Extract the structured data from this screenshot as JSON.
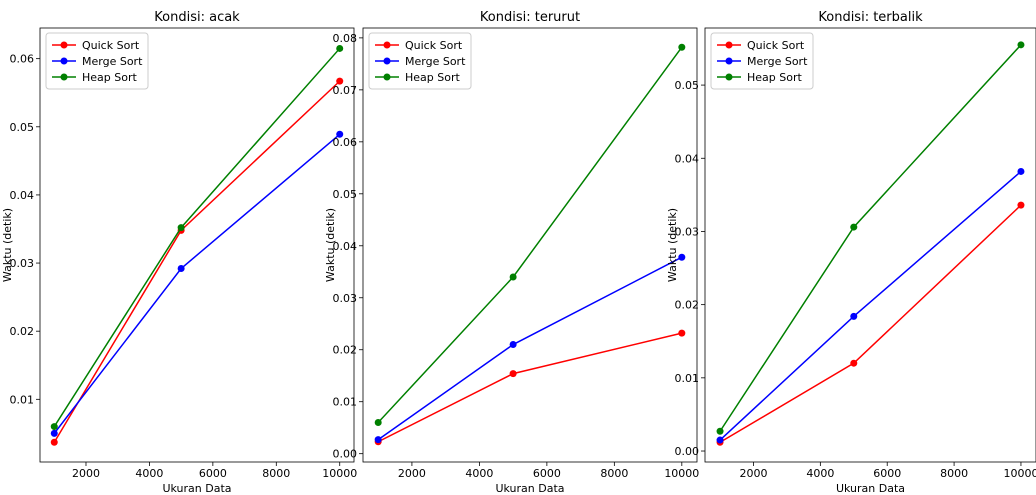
{
  "chart_data": [
    {
      "type": "line",
      "title": "Kondisi: acak",
      "xlabel": "Ukuran Data",
      "ylabel": "Waktu (detik)",
      "x": [
        1000,
        5000,
        10000
      ],
      "xticks": [
        2000,
        4000,
        6000,
        8000,
        10000
      ],
      "xtick_labels": [
        "2000",
        "4000",
        "6000",
        "8000",
        "10000"
      ],
      "xlim": [
        550,
        10450
      ],
      "yticks": [
        0.01,
        0.02,
        0.03,
        0.04,
        0.05,
        0.06
      ],
      "ytick_labels": [
        "0.01",
        "0.02",
        "0.03",
        "0.04",
        "0.05",
        "0.06"
      ],
      "ylim": [
        0.0008,
        0.0645
      ],
      "legend": "top-left",
      "grid": false,
      "series": [
        {
          "name": "Quick Sort",
          "color": "#ff0000",
          "values": [
            0.0037,
            0.0348,
            0.0567
          ]
        },
        {
          "name": "Merge Sort",
          "color": "#0000ff",
          "values": [
            0.005,
            0.0292,
            0.0489
          ]
        },
        {
          "name": "Heap Sort",
          "color": "#008000",
          "values": [
            0.006,
            0.0352,
            0.0615
          ]
        }
      ]
    },
    {
      "type": "line",
      "title": "Kondisi: terurut",
      "xlabel": "Ukuran Data",
      "ylabel": "Waktu (detik)",
      "x": [
        1000,
        5000,
        10000
      ],
      "xticks": [
        2000,
        4000,
        6000,
        8000,
        10000
      ],
      "xtick_labels": [
        "2000",
        "4000",
        "6000",
        "8000",
        "10000"
      ],
      "xlim": [
        550,
        10450
      ],
      "yticks": [
        0.0,
        0.01,
        0.02,
        0.03,
        0.04,
        0.05,
        0.06,
        0.07,
        0.08
      ],
      "ytick_labels": [
        "0.00",
        "0.01",
        "0.02",
        "0.03",
        "0.04",
        "0.05",
        "0.06",
        "0.07",
        "0.08"
      ],
      "ylim": [
        -0.0016,
        0.0819
      ],
      "legend": "top-left",
      "grid": false,
      "series": [
        {
          "name": "Quick Sort",
          "color": "#ff0000",
          "values": [
            0.0023,
            0.0154,
            0.0232
          ]
        },
        {
          "name": "Merge Sort",
          "color": "#0000ff",
          "values": [
            0.0027,
            0.021,
            0.0378
          ]
        },
        {
          "name": "Heap Sort",
          "color": "#008000",
          "values": [
            0.006,
            0.034,
            0.0782
          ]
        }
      ]
    },
    {
      "type": "line",
      "title": "Kondisi: terbalik",
      "xlabel": "Ukuran Data",
      "ylabel": "Waktu (detik)",
      "x": [
        1000,
        5000,
        10000
      ],
      "xticks": [
        2000,
        4000,
        6000,
        8000,
        10000
      ],
      "xtick_labels": [
        "2000",
        "4000",
        "6000",
        "8000",
        "10000"
      ],
      "xlim": [
        550,
        10450
      ],
      "yticks": [
        0.0,
        0.01,
        0.02,
        0.03,
        0.04,
        0.05
      ],
      "ytick_labels": [
        "0.00",
        "0.01",
        "0.02",
        "0.03",
        "0.04",
        "0.05"
      ],
      "ylim": [
        -0.0015,
        0.0578
      ],
      "legend": "top-left",
      "grid": false,
      "series": [
        {
          "name": "Quick Sort",
          "color": "#ff0000",
          "values": [
            0.0012,
            0.012,
            0.0336
          ]
        },
        {
          "name": "Merge Sort",
          "color": "#0000ff",
          "values": [
            0.0015,
            0.0184,
            0.0382
          ]
        },
        {
          "name": "Heap Sort",
          "color": "#008000",
          "values": [
            0.0027,
            0.0306,
            0.0555
          ]
        }
      ]
    }
  ]
}
